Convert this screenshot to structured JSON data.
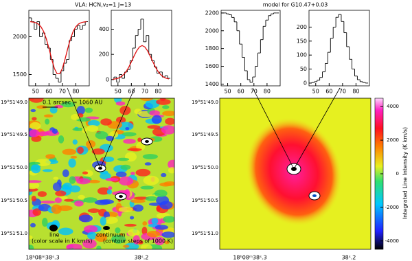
{
  "header": {
    "left_title": "VLA: HCN,v₂=1 J=13",
    "right_title": "model for G10.47+0.03"
  },
  "chart_data": [
    {
      "type": "line",
      "x": [
        46,
        48,
        50,
        52,
        54,
        56,
        58,
        60,
        62,
        64,
        66,
        68,
        70,
        72,
        74,
        76,
        78,
        80,
        82,
        84,
        86,
        88
      ],
      "series": [
        {
          "color": "#000000",
          "style": "step",
          "values": [
            2250,
            2200,
            2100,
            2200,
            2000,
            2050,
            1900,
            1850,
            1700,
            1500,
            1450,
            1400,
            1550,
            1650,
            1700,
            1950,
            2000,
            2100,
            2150,
            2100,
            2150,
            2200
          ]
        },
        {
          "color": "#e01010",
          "style": "line",
          "values": [
            2200,
            2195,
            2187,
            2169,
            2133,
            2070,
            1973,
            1846,
            1705,
            1582,
            1510,
            1510,
            1582,
            1705,
            1846,
            1973,
            2070,
            2133,
            2169,
            2187,
            2195,
            2200
          ]
        }
      ],
      "xlim": [
        45,
        90
      ],
      "ylim": [
        1350,
        2350
      ],
      "xticks": [
        50,
        60,
        70,
        80
      ],
      "yticks": [
        1500,
        2000
      ]
    },
    {
      "type": "line",
      "x": [
        46,
        48,
        50,
        52,
        54,
        56,
        58,
        60,
        62,
        64,
        66,
        68,
        70,
        72,
        74,
        76,
        78,
        80,
        82,
        84,
        86,
        88
      ],
      "series": [
        {
          "color": "#000000",
          "style": "step",
          "values": [
            0,
            20,
            -20,
            40,
            10,
            60,
            80,
            150,
            250,
            350,
            400,
            480,
            300,
            350,
            200,
            150,
            100,
            50,
            60,
            20,
            30,
            10
          ]
        },
        {
          "color": "#e01010",
          "style": "line",
          "values": [
            2,
            5,
            10,
            20,
            37,
            62,
            97,
            141,
            187,
            229,
            259,
            270,
            259,
            229,
            187,
            141,
            97,
            62,
            37,
            20,
            10,
            5
          ]
        }
      ],
      "xlim": [
        45,
        90
      ],
      "ylim": [
        -50,
        550
      ],
      "xticks": [
        50,
        60,
        70,
        80
      ],
      "yticks": [
        0,
        200,
        400
      ]
    },
    {
      "type": "line",
      "x": [
        46,
        48,
        50,
        52,
        54,
        56,
        58,
        60,
        62,
        64,
        66,
        68,
        70,
        72,
        74,
        76,
        78,
        80,
        82,
        84,
        86,
        88
      ],
      "series": [
        {
          "color": "#000000",
          "style": "step",
          "values": [
            2200,
            2200,
            2190,
            2180,
            2150,
            2100,
            2000,
            1850,
            1700,
            1550,
            1450,
            1420,
            1480,
            1600,
            1750,
            1900,
            2050,
            2120,
            2170,
            2190,
            2200,
            2200
          ]
        }
      ],
      "xlim": [
        45,
        90
      ],
      "ylim": [
        1380,
        2230
      ],
      "xticks": [
        50,
        60,
        70,
        80
      ],
      "yticks": [
        1400,
        1600,
        1800,
        2000,
        2200
      ]
    },
    {
      "type": "line",
      "x": [
        46,
        48,
        50,
        52,
        54,
        56,
        58,
        60,
        62,
        64,
        66,
        68,
        70,
        72,
        74,
        76,
        78,
        80,
        82,
        84,
        86,
        88
      ],
      "series": [
        {
          "color": "#000000",
          "style": "step",
          "values": [
            0,
            2,
            5,
            10,
            20,
            40,
            70,
            110,
            160,
            200,
            235,
            245,
            220,
            180,
            130,
            85,
            50,
            25,
            12,
            5,
            2,
            0
          ]
        }
      ],
      "xlim": [
        45,
        90
      ],
      "ylim": [
        -10,
        260
      ],
      "xticks": [
        50,
        60,
        70,
        80
      ],
      "yticks": [
        0,
        50,
        100,
        150,
        200
      ]
    }
  ],
  "maps": {
    "yticks": [
      "19°51'49.0",
      "19°51'49.5",
      "19°51'50.0",
      "19°51'50.5",
      "19°51'51.0"
    ],
    "xticks": [
      "18ʰ08ᵐ38ˢ.3",
      "38ˢ.2"
    ],
    "left_annotations": {
      "scale": "0.1 arcsec = 1060 AU",
      "line": "line",
      "continuum": "continuum",
      "color_note": "(color scale in K km/s)",
      "contour_note": "(contour steps of 1000 K)"
    },
    "colorbar": {
      "label": "Integrated Line Intensity (K km/s)",
      "lim": [
        -4500,
        4500
      ],
      "ticks": [
        4000,
        2000,
        0,
        -2000,
        -4000
      ]
    }
  }
}
